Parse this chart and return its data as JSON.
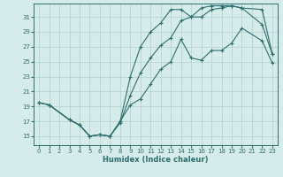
{
  "xlabel": "Humidex (Indice chaleur)",
  "xlim": [
    -0.5,
    23.5
  ],
  "ylim": [
    13.8,
    32.8
  ],
  "yticks": [
    15,
    17,
    19,
    21,
    23,
    25,
    27,
    29,
    31
  ],
  "xticks": [
    0,
    1,
    2,
    3,
    4,
    5,
    6,
    7,
    8,
    9,
    10,
    11,
    12,
    13,
    14,
    15,
    16,
    17,
    18,
    19,
    20,
    21,
    22,
    23
  ],
  "bg_color": "#d5ecea",
  "grid_color": "#b2d0ce",
  "line_color": "#2d6e6e",
  "line1_x": [
    0,
    1,
    3,
    4,
    5,
    6,
    7,
    8,
    9,
    10,
    11,
    12,
    13,
    14,
    15,
    16,
    17,
    18,
    19,
    20,
    22,
    23
  ],
  "line1_y": [
    19.5,
    19.2,
    17.2,
    16.5,
    15.0,
    15.2,
    15.0,
    17.0,
    19.2,
    20.0,
    22.0,
    24.0,
    25.0,
    28.0,
    25.5,
    25.2,
    26.5,
    26.5,
    27.5,
    29.5,
    27.8,
    24.8
  ],
  "line2_x": [
    0,
    1,
    3,
    4,
    5,
    6,
    7,
    8,
    9,
    10,
    11,
    12,
    13,
    14,
    15,
    16,
    17,
    18,
    19,
    20,
    22,
    23
  ],
  "line2_y": [
    19.5,
    19.2,
    17.2,
    16.5,
    15.0,
    15.2,
    15.0,
    16.8,
    20.5,
    23.5,
    25.5,
    27.2,
    28.2,
    30.5,
    31.0,
    31.0,
    32.0,
    32.2,
    32.5,
    32.2,
    30.0,
    26.0
  ],
  "line3_x": [
    0,
    1,
    3,
    4,
    5,
    6,
    7,
    8,
    9,
    10,
    11,
    12,
    13,
    14,
    15,
    16,
    17,
    18,
    19,
    20,
    22,
    23
  ],
  "line3_y": [
    19.5,
    19.2,
    17.2,
    16.5,
    15.0,
    15.2,
    15.0,
    17.0,
    23.0,
    27.0,
    29.0,
    30.2,
    32.0,
    32.0,
    31.0,
    32.2,
    32.5,
    32.5,
    32.5,
    32.2,
    32.0,
    26.0
  ]
}
